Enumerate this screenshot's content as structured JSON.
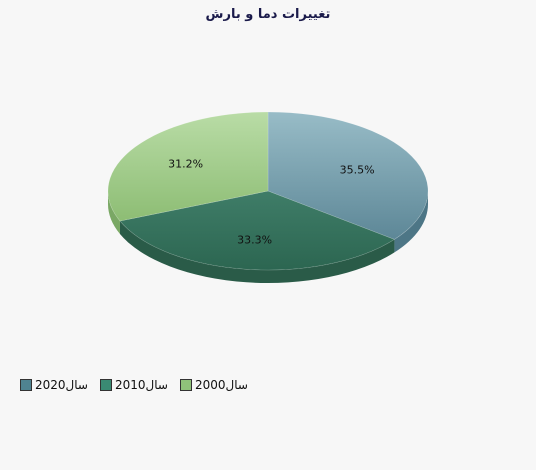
{
  "chart_data": {
    "type": "pie",
    "title": "تغییرات دما و بارش",
    "slices": [
      {
        "label": "سال2020",
        "value": 35.5,
        "value_label": "35.5%",
        "color": "#6f98a6"
      },
      {
        "label": "سال2010",
        "value": 33.3,
        "value_label": "33.3%",
        "color": "#3d7a64"
      },
      {
        "label": "سال2000",
        "value": 31.2,
        "value_label": "31.2%",
        "color": "#9cc886"
      }
    ],
    "legend_position": "bottom-left",
    "is_3d": true
  }
}
